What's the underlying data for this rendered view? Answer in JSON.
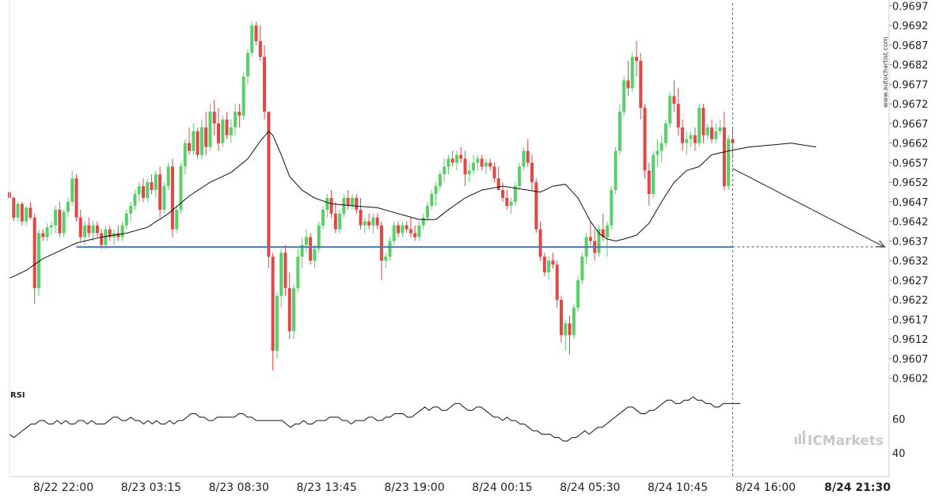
{
  "chart_data": {
    "type": "candlestick",
    "watermark_vertical": "www.autochartist.com",
    "brand_logo": "ICMarkets",
    "price_axis": {
      "ylim": [
        0.95995,
        0.96975
      ],
      "ticks": [
        "0.9697",
        "0.9692",
        "0.9687",
        "0.9682",
        "0.9677",
        "0.9672",
        "0.9667",
        "0.9662",
        "0.9657",
        "0.9652",
        "0.9647",
        "0.9642",
        "0.9637",
        "0.9632",
        "0.9627",
        "0.9622",
        "0.9617",
        "0.9612",
        "0.9607",
        "0.9602"
      ]
    },
    "time_axis": {
      "labels": [
        "8/22 22:00",
        "8/23 03:15",
        "8/23 08:30",
        "8/23 13:45",
        "8/23 19:00",
        "8/24 00:15",
        "8/24 05:30",
        "8/24 10:45",
        "8/24 16:00",
        "8/24 21:30"
      ],
      "label_positions_bar_index": [
        0,
        21,
        42,
        63,
        84,
        105,
        126,
        147,
        168,
        190
      ],
      "highlighted_label": "8/24 21:30",
      "bar_interval_minutes": 15
    },
    "support_level": {
      "value": 0.96355,
      "color": "#4a78b8"
    },
    "forecast": {
      "from_value": 0.96555,
      "to_value": 0.96355
    },
    "colors": {
      "up": "#58d068",
      "down": "#e04848",
      "ma": "#111111"
    },
    "candles_ohlc": [
      [
        0.96495,
        0.96505,
        0.96475,
        0.9648
      ],
      [
        0.9648,
        0.96485,
        0.9642,
        0.9643
      ],
      [
        0.9643,
        0.9647,
        0.9642,
        0.96465
      ],
      [
        0.96465,
        0.9647,
        0.9641,
        0.9642
      ],
      [
        0.9642,
        0.9646,
        0.9641,
        0.96455
      ],
      [
        0.96455,
        0.9647,
        0.96425,
        0.9643
      ],
      [
        0.9643,
        0.9644,
        0.9621,
        0.9625
      ],
      [
        0.9625,
        0.964,
        0.9623,
        0.9639
      ],
      [
        0.9639,
        0.964,
        0.9637,
        0.9638
      ],
      [
        0.9638,
        0.96415,
        0.9637,
        0.96405
      ],
      [
        0.96405,
        0.9642,
        0.96385,
        0.9641
      ],
      [
        0.9641,
        0.9646,
        0.9639,
        0.9645
      ],
      [
        0.9645,
        0.9647,
        0.9638,
        0.9639
      ],
      [
        0.9639,
        0.9645,
        0.9638,
        0.96445
      ],
      [
        0.96445,
        0.9648,
        0.9643,
        0.9647
      ],
      [
        0.9647,
        0.9655,
        0.9646,
        0.9653
      ],
      [
        0.9653,
        0.9654,
        0.9642,
        0.9643
      ],
      [
        0.9643,
        0.9645,
        0.9637,
        0.9638
      ],
      [
        0.9638,
        0.9642,
        0.9636,
        0.9641
      ],
      [
        0.9641,
        0.9643,
        0.9638,
        0.9639
      ],
      [
        0.9639,
        0.9642,
        0.9637,
        0.9641
      ],
      [
        0.9641,
        0.9642,
        0.9638,
        0.9639
      ],
      [
        0.9639,
        0.964,
        0.9635,
        0.9636
      ],
      [
        0.9636,
        0.9641,
        0.9635,
        0.964
      ],
      [
        0.964,
        0.9641,
        0.9637,
        0.9638
      ],
      [
        0.9638,
        0.964,
        0.9636,
        0.9639
      ],
      [
        0.9639,
        0.9641,
        0.9637,
        0.9638
      ],
      [
        0.9638,
        0.9642,
        0.9637,
        0.9641
      ],
      [
        0.9641,
        0.9645,
        0.964,
        0.9644
      ],
      [
        0.9644,
        0.9647,
        0.9642,
        0.9646
      ],
      [
        0.9646,
        0.965,
        0.9645,
        0.9649
      ],
      [
        0.9649,
        0.9652,
        0.9647,
        0.9651
      ],
      [
        0.9651,
        0.9653,
        0.9647,
        0.9648
      ],
      [
        0.9648,
        0.9653,
        0.9647,
        0.9652
      ],
      [
        0.9652,
        0.9654,
        0.9649,
        0.965
      ],
      [
        0.965,
        0.9655,
        0.9648,
        0.9654
      ],
      [
        0.9654,
        0.9656,
        0.9643,
        0.9645
      ],
      [
        0.9645,
        0.9652,
        0.9644,
        0.9651
      ],
      [
        0.9651,
        0.9657,
        0.965,
        0.9656
      ],
      [
        0.9656,
        0.9658,
        0.9638,
        0.964
      ],
      [
        0.964,
        0.9646,
        0.9639,
        0.9645
      ],
      [
        0.9645,
        0.9657,
        0.9644,
        0.9656
      ],
      [
        0.9656,
        0.9663,
        0.9654,
        0.9662
      ],
      [
        0.9662,
        0.9666,
        0.9659,
        0.966
      ],
      [
        0.966,
        0.9667,
        0.9659,
        0.9665
      ],
      [
        0.9665,
        0.9666,
        0.9658,
        0.9659
      ],
      [
        0.9659,
        0.9668,
        0.9658,
        0.9666
      ],
      [
        0.9666,
        0.967,
        0.9659,
        0.9661
      ],
      [
        0.9661,
        0.9672,
        0.966,
        0.967
      ],
      [
        0.967,
        0.9673,
        0.9664,
        0.9667
      ],
      [
        0.9667,
        0.9671,
        0.966,
        0.9662
      ],
      [
        0.9662,
        0.9669,
        0.9661,
        0.9668
      ],
      [
        0.9668,
        0.967,
        0.9663,
        0.9664
      ],
      [
        0.9664,
        0.9668,
        0.9662,
        0.9666
      ],
      [
        0.9666,
        0.9672,
        0.9664,
        0.967
      ],
      [
        0.967,
        0.9672,
        0.9666,
        0.9669
      ],
      [
        0.9669,
        0.968,
        0.9668,
        0.9679
      ],
      [
        0.9679,
        0.9686,
        0.9677,
        0.9685
      ],
      [
        0.9685,
        0.9693,
        0.9684,
        0.9692
      ],
      [
        0.9692,
        0.9693,
        0.9687,
        0.9688
      ],
      [
        0.9688,
        0.9692,
        0.9683,
        0.9684
      ],
      [
        0.9684,
        0.9687,
        0.9668,
        0.967
      ],
      [
        0.967,
        0.967,
        0.963,
        0.9633
      ],
      [
        0.9633,
        0.9634,
        0.9604,
        0.9609
      ],
      [
        0.9609,
        0.9624,
        0.9607,
        0.9623
      ],
      [
        0.9623,
        0.9635,
        0.962,
        0.9634
      ],
      [
        0.9634,
        0.9636,
        0.9623,
        0.9625
      ],
      [
        0.9625,
        0.9629,
        0.9612,
        0.9614
      ],
      [
        0.9614,
        0.9626,
        0.9612,
        0.9625
      ],
      [
        0.9625,
        0.9635,
        0.9624,
        0.9633
      ],
      [
        0.9633,
        0.9638,
        0.963,
        0.9636
      ],
      [
        0.9636,
        0.964,
        0.9634,
        0.9638
      ],
      [
        0.9638,
        0.9639,
        0.9631,
        0.9632
      ],
      [
        0.9632,
        0.9636,
        0.963,
        0.9635
      ],
      [
        0.9635,
        0.9642,
        0.9634,
        0.9641
      ],
      [
        0.9641,
        0.9646,
        0.964,
        0.9645
      ],
      [
        0.9645,
        0.9649,
        0.9643,
        0.9648
      ],
      [
        0.9648,
        0.965,
        0.9643,
        0.9644
      ],
      [
        0.9644,
        0.9647,
        0.9639,
        0.964
      ],
      [
        0.964,
        0.9645,
        0.9639,
        0.9644
      ],
      [
        0.9644,
        0.9649,
        0.9643,
        0.9648
      ],
      [
        0.9648,
        0.965,
        0.9645,
        0.9646
      ],
      [
        0.9646,
        0.9649,
        0.9645,
        0.9648
      ],
      [
        0.9648,
        0.9649,
        0.9644,
        0.9645
      ],
      [
        0.9645,
        0.9648,
        0.964,
        0.9641
      ],
      [
        0.9641,
        0.9643,
        0.9639,
        0.9642
      ],
      [
        0.9642,
        0.9644,
        0.964,
        0.9641
      ],
      [
        0.9641,
        0.9644,
        0.9639,
        0.9643
      ],
      [
        0.9643,
        0.9644,
        0.964,
        0.9641
      ],
      [
        0.9641,
        0.9642,
        0.9627,
        0.9632
      ],
      [
        0.9632,
        0.9634,
        0.963,
        0.9633
      ],
      [
        0.9633,
        0.9638,
        0.9632,
        0.9637
      ],
      [
        0.9637,
        0.9642,
        0.9636,
        0.9641
      ],
      [
        0.9641,
        0.9642,
        0.9638,
        0.9639
      ],
      [
        0.9639,
        0.9642,
        0.9638,
        0.9641
      ],
      [
        0.9641,
        0.9642,
        0.9639,
        0.964
      ],
      [
        0.964,
        0.9643,
        0.9638,
        0.9639
      ],
      [
        0.9639,
        0.9641,
        0.9637,
        0.9638
      ],
      [
        0.9638,
        0.9642,
        0.9637,
        0.9641
      ],
      [
        0.9641,
        0.9644,
        0.964,
        0.9643
      ],
      [
        0.9643,
        0.9647,
        0.9642,
        0.9646
      ],
      [
        0.9646,
        0.965,
        0.9645,
        0.9649
      ],
      [
        0.9649,
        0.9652,
        0.9646,
        0.9651
      ],
      [
        0.9651,
        0.9655,
        0.965,
        0.9654
      ],
      [
        0.9654,
        0.9658,
        0.9652,
        0.9656
      ],
      [
        0.9656,
        0.9659,
        0.9654,
        0.9658
      ],
      [
        0.9658,
        0.966,
        0.9656,
        0.9657
      ],
      [
        0.9657,
        0.966,
        0.9655,
        0.9659
      ],
      [
        0.9659,
        0.9661,
        0.9657,
        0.9658
      ],
      [
        0.9658,
        0.966,
        0.9651,
        0.9654
      ],
      [
        0.9654,
        0.9657,
        0.9652,
        0.9655
      ],
      [
        0.9655,
        0.9659,
        0.9654,
        0.9657
      ],
      [
        0.9657,
        0.9659,
        0.9655,
        0.9658
      ],
      [
        0.9658,
        0.9659,
        0.9655,
        0.9656
      ],
      [
        0.9656,
        0.9658,
        0.9654,
        0.9657
      ],
      [
        0.9657,
        0.9658,
        0.9655,
        0.9656
      ],
      [
        0.9656,
        0.9657,
        0.9652,
        0.9653
      ],
      [
        0.9653,
        0.9656,
        0.9651,
        0.965
      ],
      [
        0.965,
        0.9652,
        0.9647,
        0.9648
      ],
      [
        0.9648,
        0.965,
        0.9645,
        0.9646
      ],
      [
        0.9646,
        0.9648,
        0.9644,
        0.9647
      ],
      [
        0.9647,
        0.9652,
        0.9646,
        0.9651
      ],
      [
        0.9651,
        0.9657,
        0.965,
        0.9656
      ],
      [
        0.9656,
        0.9661,
        0.9655,
        0.966
      ],
      [
        0.966,
        0.9663,
        0.9656,
        0.9657
      ],
      [
        0.9657,
        0.9659,
        0.965,
        0.9652
      ],
      [
        0.9652,
        0.9653,
        0.9639,
        0.964
      ],
      [
        0.964,
        0.9642,
        0.9632,
        0.9633
      ],
      [
        0.9633,
        0.9634,
        0.9628,
        0.9629
      ],
      [
        0.9629,
        0.9633,
        0.9627,
        0.9632
      ],
      [
        0.9632,
        0.9634,
        0.963,
        0.9631
      ],
      [
        0.9631,
        0.9632,
        0.962,
        0.9622
      ],
      [
        0.9622,
        0.9623,
        0.9611,
        0.9613
      ],
      [
        0.9613,
        0.9617,
        0.9609,
        0.9616
      ],
      [
        0.9616,
        0.9618,
        0.9608,
        0.9613
      ],
      [
        0.9613,
        0.9621,
        0.9612,
        0.962
      ],
      [
        0.962,
        0.9628,
        0.9619,
        0.9627
      ],
      [
        0.9627,
        0.9634,
        0.9626,
        0.9633
      ],
      [
        0.9633,
        0.9639,
        0.9631,
        0.9638
      ],
      [
        0.9638,
        0.9642,
        0.9636,
        0.9637
      ],
      [
        0.9637,
        0.964,
        0.9632,
        0.9634
      ],
      [
        0.9634,
        0.9641,
        0.9633,
        0.964
      ],
      [
        0.964,
        0.9644,
        0.9637,
        0.9638
      ],
      [
        0.9638,
        0.9642,
        0.9633,
        0.9641
      ],
      [
        0.9641,
        0.9651,
        0.964,
        0.965
      ],
      [
        0.965,
        0.9661,
        0.9649,
        0.966
      ],
      [
        0.966,
        0.9672,
        0.9659,
        0.967
      ],
      [
        0.967,
        0.9679,
        0.9669,
        0.9678
      ],
      [
        0.9678,
        0.9683,
        0.9674,
        0.9676
      ],
      [
        0.9676,
        0.9685,
        0.9675,
        0.9684
      ],
      [
        0.9684,
        0.9688,
        0.9679,
        0.9683
      ],
      [
        0.9683,
        0.9685,
        0.9668,
        0.9671
      ],
      [
        0.9671,
        0.9672,
        0.9653,
        0.9655
      ],
      [
        0.9655,
        0.9657,
        0.9646,
        0.9649
      ],
      [
        0.9649,
        0.966,
        0.9648,
        0.9659
      ],
      [
        0.9659,
        0.9663,
        0.9656,
        0.966
      ],
      [
        0.966,
        0.9664,
        0.9657,
        0.9662
      ],
      [
        0.9662,
        0.9668,
        0.9661,
        0.9667
      ],
      [
        0.9667,
        0.9675,
        0.9666,
        0.9674
      ],
      [
        0.9674,
        0.9678,
        0.967,
        0.9672
      ],
      [
        0.9672,
        0.9676,
        0.9664,
        0.9666
      ],
      [
        0.9666,
        0.9668,
        0.966,
        0.9662
      ],
      [
        0.9662,
        0.9665,
        0.9659,
        0.9663
      ],
      [
        0.9663,
        0.9665,
        0.9661,
        0.9664
      ],
      [
        0.9664,
        0.9666,
        0.966,
        0.9662
      ],
      [
        0.9662,
        0.9672,
        0.9661,
        0.9671
      ],
      [
        0.9671,
        0.9672,
        0.9662,
        0.9664
      ],
      [
        0.9664,
        0.9667,
        0.9663,
        0.9666
      ],
      [
        0.9666,
        0.9668,
        0.9662,
        0.9663
      ],
      [
        0.9663,
        0.9667,
        0.9662,
        0.9665
      ],
      [
        0.9665,
        0.9668,
        0.9664,
        0.9666
      ],
      [
        0.9666,
        0.967,
        0.965,
        0.9651
      ],
      [
        0.9651,
        0.9664,
        0.965,
        0.9663
      ],
      [
        0.9663,
        0.9666,
        0.9658,
        0.9662
      ]
    ],
    "ma_line": [
      [
        0,
        0.96275
      ],
      [
        4,
        0.96295
      ],
      [
        8,
        0.96325
      ],
      [
        12,
        0.96345
      ],
      [
        16,
        0.96365
      ],
      [
        22,
        0.9638
      ],
      [
        28,
        0.9639
      ],
      [
        33,
        0.96405
      ],
      [
        38,
        0.9644
      ],
      [
        43,
        0.96485
      ],
      [
        48,
        0.9652
      ],
      [
        53,
        0.96545
      ],
      [
        57,
        0.9658
      ],
      [
        60,
        0.96625
      ],
      [
        62,
        0.9665
      ],
      [
        63,
        0.9664
      ],
      [
        65,
        0.9659
      ],
      [
        67,
        0.96535
      ],
      [
        70,
        0.965
      ],
      [
        73,
        0.9648
      ],
      [
        77,
        0.96465
      ],
      [
        82,
        0.9646
      ],
      [
        88,
        0.96455
      ],
      [
        93,
        0.9644
      ],
      [
        98,
        0.96425
      ],
      [
        102,
        0.96425
      ],
      [
        105,
        0.9645
      ],
      [
        109,
        0.9648
      ],
      [
        113,
        0.965
      ],
      [
        118,
        0.9651
      ],
      [
        121,
        0.96505
      ],
      [
        124,
        0.965
      ],
      [
        127,
        0.96495
      ],
      [
        130,
        0.9651
      ],
      [
        133,
        0.96515
      ],
      [
        136,
        0.9648
      ],
      [
        139,
        0.9642
      ],
      [
        141,
        0.9639
      ],
      [
        143,
        0.96375
      ],
      [
        145,
        0.9637
      ],
      [
        147,
        0.96375
      ],
      [
        150,
        0.96385
      ],
      [
        153,
        0.96415
      ],
      [
        156,
        0.9647
      ],
      [
        159,
        0.9652
      ],
      [
        162,
        0.9655
      ],
      [
        165,
        0.9656
      ],
      [
        168,
        0.9659
      ],
      [
        172,
        0.966
      ],
      [
        177,
        0.9661
      ],
      [
        182,
        0.96615
      ],
      [
        187,
        0.9662
      ],
      [
        190,
        0.96615
      ],
      [
        193,
        0.9661
      ]
    ],
    "rsi": {
      "label": "RSI",
      "ticks": [
        60,
        40
      ],
      "values": [
        51,
        49,
        51,
        53,
        55,
        57,
        57,
        59,
        59,
        57,
        57,
        59,
        57,
        59,
        57,
        57,
        59,
        59,
        57,
        59,
        57,
        57,
        57,
        59,
        61,
        61,
        59,
        59,
        61,
        59,
        59,
        57,
        59,
        57,
        59,
        57,
        57,
        59,
        57,
        59,
        59,
        61,
        63,
        63,
        61,
        61,
        59,
        59,
        61,
        61,
        61,
        61,
        61,
        63,
        63,
        61,
        61,
        59,
        59,
        59,
        59,
        59,
        59,
        59,
        57,
        55,
        57,
        57,
        59,
        57,
        57,
        59,
        59,
        59,
        61,
        61,
        61,
        59,
        59,
        57,
        59,
        59,
        59,
        61,
        61,
        59,
        59,
        61,
        61,
        63,
        63,
        63,
        61,
        61,
        63,
        65,
        67,
        65,
        67,
        67,
        65,
        65,
        67,
        69,
        69,
        67,
        65,
        65,
        67,
        67,
        65,
        63,
        61,
        61,
        59,
        61,
        59,
        59,
        57,
        57,
        55,
        53,
        53,
        51,
        51,
        51,
        49,
        49,
        47,
        47,
        49,
        49,
        51,
        53,
        51,
        53,
        55,
        55,
        57,
        59,
        61,
        63,
        65,
        67,
        67,
        65,
        63,
        63,
        65,
        65,
        67,
        69,
        71,
        71,
        69,
        69,
        71,
        71,
        73,
        71,
        71,
        69,
        69,
        67,
        67,
        69,
        69,
        69,
        69,
        69
      ]
    }
  }
}
